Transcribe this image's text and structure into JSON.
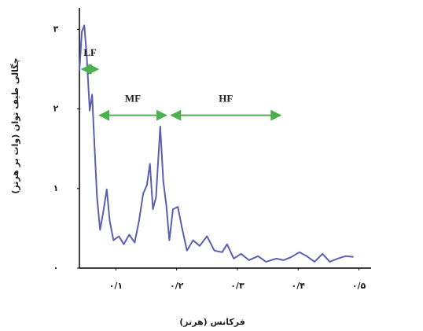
{
  "chart_data": {
    "type": "line",
    "x_label": "فرکانس (هرتز)",
    "y_label": "چگالی طیف توان (وات بر هرتز)",
    "x": [
      0.04,
      0.044,
      0.048,
      0.052,
      0.057,
      0.061,
      0.064,
      0.069,
      0.074,
      0.079,
      0.085,
      0.09,
      0.096,
      0.105,
      0.113,
      0.122,
      0.131,
      0.138,
      0.145,
      0.151,
      0.156,
      0.161,
      0.166,
      0.173,
      0.178,
      0.183,
      0.188,
      0.194,
      0.202,
      0.209,
      0.217,
      0.227,
      0.238,
      0.25,
      0.262,
      0.275,
      0.283,
      0.294,
      0.306,
      0.319,
      0.334,
      0.347,
      0.364,
      0.376,
      0.389,
      0.402,
      0.414,
      0.427,
      0.44,
      0.452,
      0.465,
      0.478,
      0.491
    ],
    "series": [
      {
        "color": "#5b5fb0",
        "values": [
          2.48,
          2.97,
          3.05,
          2.67,
          1.98,
          2.18,
          1.68,
          0.89,
          0.48,
          0.69,
          0.99,
          0.59,
          0.35,
          0.4,
          0.3,
          0.42,
          0.32,
          0.59,
          0.94,
          1.04,
          1.31,
          0.74,
          0.89,
          1.78,
          1.09,
          0.79,
          0.35,
          0.74,
          0.77,
          0.5,
          0.22,
          0.35,
          0.28,
          0.4,
          0.22,
          0.2,
          0.3,
          0.12,
          0.18,
          0.1,
          0.15,
          0.08,
          0.12,
          0.1,
          0.14,
          0.2,
          0.15,
          0.08,
          0.18,
          0.08,
          0.12,
          0.15,
          0.14
        ]
      }
    ],
    "xlim": [
      0.04,
      0.52
    ],
    "ylim": [
      0,
      3.3
    ],
    "xticks": [
      {
        "value": 0.1,
        "label": "۰/۱"
      },
      {
        "value": 0.2,
        "label": "۰/۲"
      },
      {
        "value": 0.3,
        "label": "۰/۳"
      },
      {
        "value": 0.4,
        "label": "۰/۴"
      },
      {
        "value": 0.5,
        "label": "۰/۵"
      }
    ],
    "yticks": [
      {
        "value": 0,
        "label": "۰"
      },
      {
        "value": 1,
        "label": "۱"
      },
      {
        "value": 2,
        "label": "۲"
      },
      {
        "value": 3,
        "label": "۳"
      }
    ],
    "annotations": [
      {
        "text": "LF",
        "x1": 0.044,
        "x2": 0.071,
        "y": 2.5,
        "color": "#4caf50"
      },
      {
        "text": "MF",
        "x1": 0.073,
        "x2": 0.183,
        "y": 1.92,
        "color": "#4caf50"
      },
      {
        "text": "HF",
        "x1": 0.191,
        "x2": 0.371,
        "y": 1.92,
        "color": "#4caf50"
      }
    ]
  }
}
